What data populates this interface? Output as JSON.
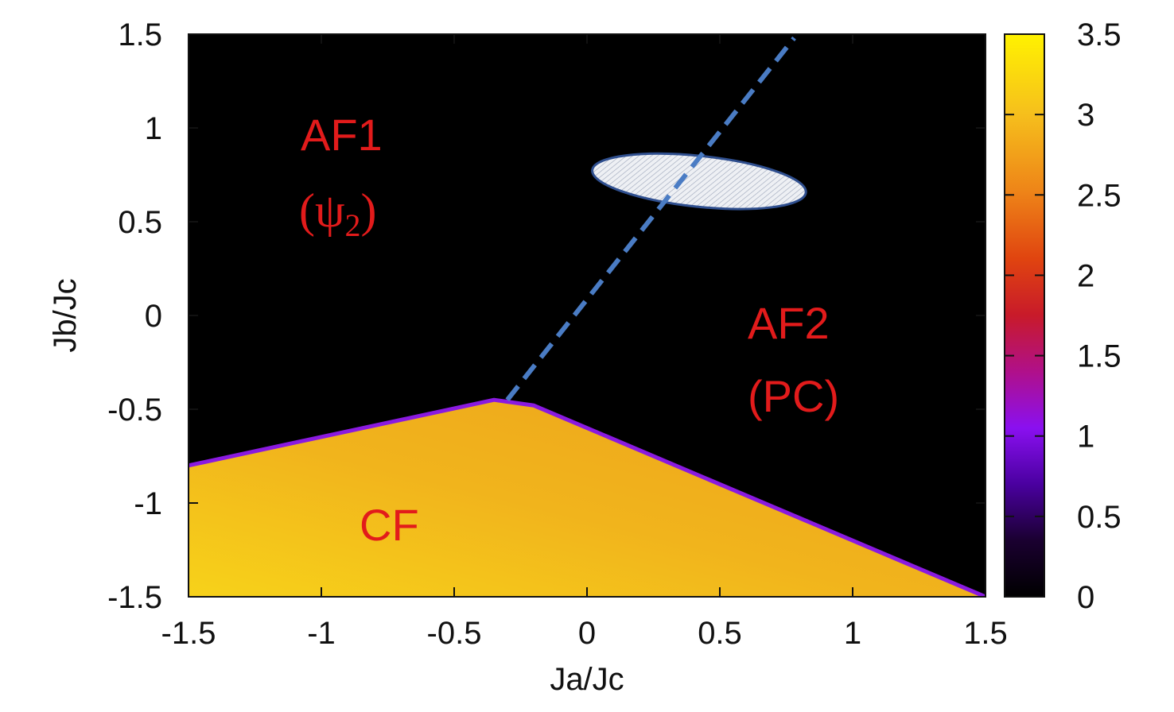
{
  "chart_data": {
    "type": "heatmap",
    "title": "",
    "xlabel": "Ja/Jc",
    "ylabel": "Jb/Jc",
    "xlim": [
      -1.5,
      1.5
    ],
    "ylim": [
      -1.5,
      1.5
    ],
    "xticks": [
      "-1.5",
      "-1",
      "-0.5",
      "0",
      "0.5",
      "1",
      "1.5"
    ],
    "yticks": [
      "1.5",
      "1",
      "0.5",
      "0",
      "-0.5",
      "-1",
      "-1.5"
    ],
    "colorbar": {
      "range": [
        0,
        3.5
      ],
      "ticks": [
        "3.5",
        "3",
        "2.5",
        "2",
        "1.5",
        "1",
        "0.5",
        "0"
      ],
      "colormap": [
        "#000000",
        "#3a0070",
        "#8a00e0",
        "#c0107a",
        "#e04010",
        "#f09018",
        "#fbd21c",
        "#fff200"
      ]
    },
    "boundary": [
      [
        -1.5,
        -0.8
      ],
      [
        -0.35,
        -0.45
      ],
      [
        -0.2,
        -0.48
      ],
      [
        1.5,
        -1.5
      ]
    ],
    "regions": {
      "low": {
        "value": 0,
        "color": "#000000"
      },
      "high": {
        "value": 3.2,
        "color": "#f2b21a"
      }
    },
    "dashed_line": {
      "from": [
        -0.3,
        -0.45
      ],
      "to": [
        0.78,
        1.48
      ],
      "color": "#4a7cc4"
    },
    "ellipse": {
      "center": [
        0.35,
        0.8
      ],
      "fill": "#e6e8ee",
      "stroke": "#2f4f8f"
    }
  },
  "labels": {
    "af1": "AF1",
    "af1_sub_open": "(ψ",
    "af1_sub_index": "2",
    "af1_sub_close": ")",
    "af2": "AF2",
    "af2_sub": "(PC)",
    "cf": "CF"
  },
  "colors": {
    "label": "#e21b1b",
    "dash": "#4a7cc4"
  }
}
